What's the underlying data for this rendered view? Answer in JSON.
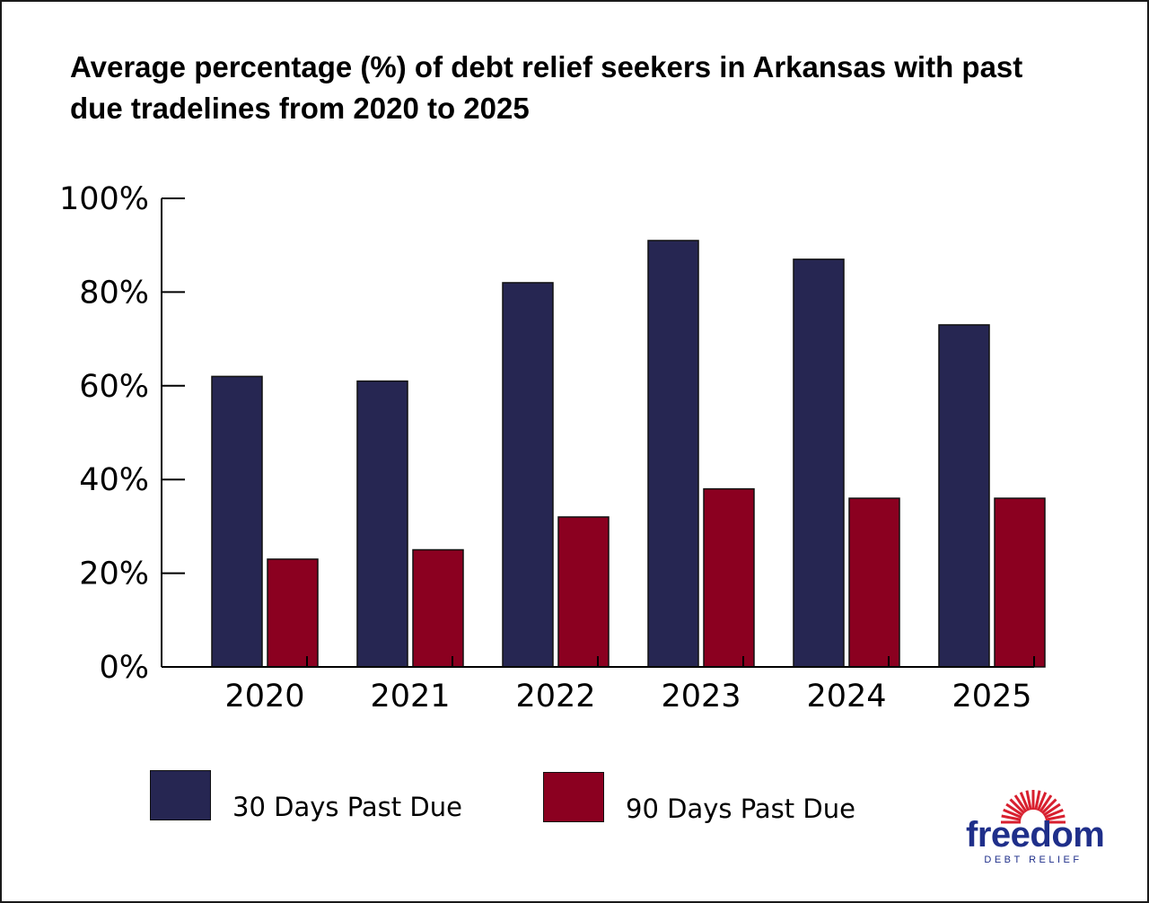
{
  "chart_data": {
    "type": "bar",
    "title": "Average percentage (%) of debt relief seekers in Arkansas with past due tradelines from 2020 to 2025",
    "categories": [
      "2020",
      "2021",
      "2022",
      "2023",
      "2024",
      "2025"
    ],
    "series": [
      {
        "name": "30 Days Past Due",
        "color": "#262652",
        "values": [
          62,
          61,
          82,
          91,
          87,
          73
        ]
      },
      {
        "name": "90 Days Past Due",
        "color": "#8b0020",
        "values": [
          23,
          25,
          32,
          38,
          36,
          36
        ]
      }
    ],
    "ylim": [
      0,
      100
    ],
    "yticks": [
      0,
      20,
      40,
      60,
      80,
      100
    ],
    "ytick_labels": [
      "0%",
      "20%",
      "40%",
      "60%",
      "80%",
      "100%"
    ],
    "grid": false,
    "legend_position": "bottom"
  },
  "logo": {
    "word": "freedom",
    "subtitle": "DEBT RELIEF",
    "color": "#1f2f8a",
    "accent": "#d8202f"
  }
}
